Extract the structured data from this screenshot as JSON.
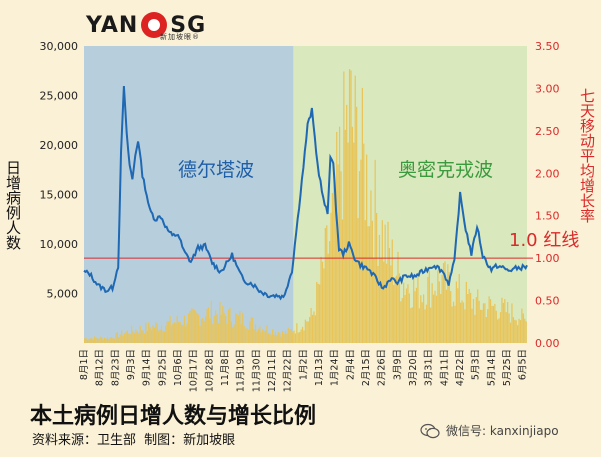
{
  "logo": {
    "text_left": "YAN",
    "text_right": "SG",
    "tagline": "新加坡眼®"
  },
  "left_ylabel": "日增病例人数",
  "right_ylabel": "七天移动平均增长率",
  "wave_delta_label": "德尔塔波",
  "wave_omicron_label": "奥密克戎波",
  "redline_label": "1.0 红线",
  "title": "本土病例日增人数与增长比例",
  "subtitle": "资料来源：卫生部   制图：新加坡眼",
  "watermark": "微信号: kanxinjiapo",
  "colors": {
    "background": "#fbf1d6",
    "delta_shade": "#b7cfdc",
    "omicron_shade": "#d9e8bd",
    "bars": "#e8c459",
    "line": "#1f68b3",
    "redline": "#d92b2b",
    "right_axis": "#d92b2b"
  },
  "chart_data": {
    "type": "bar+line",
    "x_tick_labels": [
      "8月1日",
      "8月12日",
      "8月23日",
      "9月3日",
      "9月14日",
      "9月25日",
      "10月6日",
      "10月17日",
      "10月28日",
      "11月8日",
      "11月19日",
      "11月30日",
      "12月11日",
      "12月22日",
      "1月2日",
      "1月13日",
      "1月24日",
      "2月4日",
      "2月15日",
      "2月26日",
      "3月9日",
      "3月20日",
      "3月31日",
      "4月11日",
      "4月22日",
      "5月3日",
      "5月14日",
      "5月25日",
      "6月5日"
    ],
    "left_axis": {
      "ylim": [
        0,
        30000
      ],
      "ticks": [
        "5,000",
        "10,000",
        "15,000",
        "20,000",
        "25,000",
        "30,000"
      ],
      "tick_values": [
        5000,
        10000,
        15000,
        20000,
        25000,
        30000
      ]
    },
    "right_axis": {
      "ylim": [
        0,
        3.5
      ],
      "ticks": [
        "0.00",
        "0.50",
        "1.00",
        "1.50",
        "2.00",
        "2.50",
        "3.00",
        "3.50"
      ],
      "tick_values": [
        0,
        0.5,
        1.0,
        1.5,
        2.0,
        2.5,
        3.0,
        3.5
      ]
    },
    "redline_value": 1.0,
    "regions": [
      {
        "name": "德尔塔波",
        "x_start": 0,
        "x_end": 147
      },
      {
        "name": "奥密克戎波",
        "x_start": 147,
        "x_end": 311
      }
    ],
    "series": [
      {
        "axis": "right",
        "kind": "bar",
        "note_keypoints": true,
        "keypoints_x": [
          0,
          18,
          26,
          33,
          45,
          60,
          75,
          90,
          100,
          112,
          125,
          140,
          150,
          160,
          172,
          180,
          186,
          190,
          194,
          198,
          204,
          212,
          222,
          235,
          250,
          262,
          275,
          290,
          305,
          311
        ],
        "keypoints_y": [
          0.06,
          0.07,
          0.12,
          0.16,
          0.2,
          0.25,
          0.32,
          0.4,
          0.35,
          0.3,
          0.2,
          0.12,
          0.2,
          0.35,
          1.3,
          2.3,
          2.9,
          2.6,
          2.4,
          2.1,
          1.7,
          1.2,
          0.8,
          0.65,
          0.8,
          0.65,
          0.5,
          0.45,
          0.35,
          0.25
        ]
      },
      {
        "axis": "left",
        "kind": "line",
        "keypoints_x": [
          0,
          4,
          10,
          16,
          20,
          24,
          26,
          28,
          30,
          32,
          34,
          36,
          38,
          41,
          44,
          46,
          50,
          54,
          58,
          62,
          66,
          70,
          75,
          80,
          85,
          90,
          96,
          100,
          104,
          108,
          112,
          118,
          124,
          130,
          136,
          140,
          146,
          150,
          154,
          157,
          160,
          164,
          168,
          171,
          173,
          175,
          177,
          179,
          182,
          186,
          190,
          194,
          200,
          205,
          210,
          215,
          220,
          226,
          232,
          240,
          246,
          252,
          256,
          260,
          264,
          268,
          272,
          276,
          280,
          286,
          290,
          294,
          298,
          302,
          306,
          311
        ],
        "keypoints_y": [
          7200,
          7000,
          5800,
          5300,
          5600,
          7800,
          19000,
          26000,
          21000,
          18000,
          16500,
          19000,
          20500,
          17000,
          15000,
          13500,
          12500,
          12800,
          11600,
          10800,
          11000,
          9300,
          8200,
          9600,
          9800,
          8100,
          7200,
          8000,
          8900,
          7500,
          6300,
          6000,
          5200,
          4800,
          4800,
          4600,
          7300,
          12500,
          17800,
          22000,
          23500,
          18000,
          14500,
          13000,
          19000,
          18000,
          13500,
          9500,
          9000,
          10000,
          8600,
          7900,
          7400,
          6500,
          5500,
          6500,
          6100,
          6800,
          6700,
          7400,
          7900,
          7200,
          6000,
          8200,
          15000,
          11500,
          9000,
          11800,
          8800,
          7400,
          7800,
          7600,
          7300,
          7500,
          7600,
          7700
        ]
      }
    ],
    "total_days": 311
  }
}
